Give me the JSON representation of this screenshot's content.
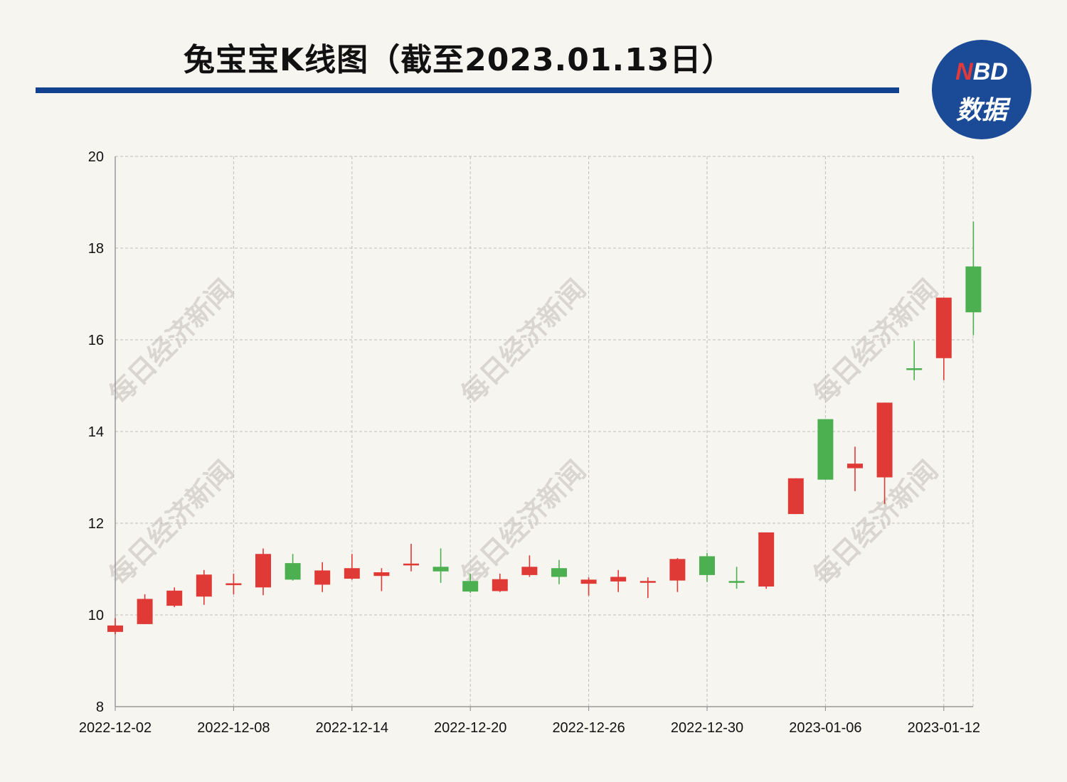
{
  "title": "兔宝宝K线图（截至2023.01.13日）",
  "logo": {
    "line1_n": "N",
    "line1_rest": "BD",
    "line2": "数据"
  },
  "watermark": "每日经济新闻",
  "colors": {
    "up": "#e03a36",
    "down": "#4caf50",
    "accent": "#12418f",
    "grid": "#bdbdbd"
  },
  "chart_data": {
    "type": "candlestick",
    "title": "兔宝宝K线图（截至2023.01.13日）",
    "ylim": [
      8,
      20
    ],
    "yticks": [
      8,
      10,
      12,
      14,
      16,
      18,
      20
    ],
    "xticks": [
      "2022-12-02",
      "2022-12-08",
      "2022-12-14",
      "2022-12-20",
      "2022-12-26",
      "2022-12-30",
      "2023-01-06",
      "2023-01-12"
    ],
    "grid": true,
    "dates": [
      "2022-12-02",
      "2022-12-05",
      "2022-12-06",
      "2022-12-07",
      "2022-12-08",
      "2022-12-09",
      "2022-12-12",
      "2022-12-13",
      "2022-12-14",
      "2022-12-15",
      "2022-12-16",
      "2022-12-19",
      "2022-12-20",
      "2022-12-21",
      "2022-12-22",
      "2022-12-23",
      "2022-12-26",
      "2022-12-27",
      "2022-12-28",
      "2022-12-29",
      "2022-12-30",
      "2023-01-03",
      "2023-01-04",
      "2023-01-05",
      "2023-01-06",
      "2023-01-09",
      "2023-01-10",
      "2023-01-11",
      "2023-01-12",
      "2023-01-13"
    ],
    "candles": [
      {
        "open": 9.63,
        "close": 9.77,
        "high": 9.93,
        "low": 9.58,
        "dir": "up"
      },
      {
        "open": 9.8,
        "close": 10.35,
        "high": 10.45,
        "low": 9.8,
        "dir": "up"
      },
      {
        "open": 10.2,
        "close": 10.53,
        "high": 10.6,
        "low": 10.17,
        "dir": "up"
      },
      {
        "open": 10.4,
        "close": 10.88,
        "high": 10.98,
        "low": 10.22,
        "dir": "up"
      },
      {
        "open": 10.65,
        "close": 10.69,
        "high": 10.9,
        "low": 10.45,
        "dir": "up"
      },
      {
        "open": 10.6,
        "close": 11.33,
        "high": 11.45,
        "low": 10.43,
        "dir": "up"
      },
      {
        "open": 11.13,
        "close": 10.77,
        "high": 11.33,
        "low": 10.75,
        "dir": "down"
      },
      {
        "open": 10.66,
        "close": 10.97,
        "high": 11.15,
        "low": 10.5,
        "dir": "up"
      },
      {
        "open": 10.79,
        "close": 11.02,
        "high": 11.33,
        "low": 10.77,
        "dir": "up"
      },
      {
        "open": 10.85,
        "close": 10.93,
        "high": 11.02,
        "low": 10.52,
        "dir": "up"
      },
      {
        "open": 11.08,
        "close": 11.12,
        "high": 11.55,
        "low": 10.95,
        "dir": "up"
      },
      {
        "open": 11.05,
        "close": 10.95,
        "high": 11.45,
        "low": 10.7,
        "dir": "down"
      },
      {
        "open": 10.74,
        "close": 10.51,
        "high": 10.9,
        "low": 10.48,
        "dir": "down"
      },
      {
        "open": 10.52,
        "close": 10.78,
        "high": 10.9,
        "low": 10.5,
        "dir": "up"
      },
      {
        "open": 10.87,
        "close": 11.05,
        "high": 11.3,
        "low": 10.83,
        "dir": "up"
      },
      {
        "open": 11.02,
        "close": 10.83,
        "high": 11.2,
        "low": 10.67,
        "dir": "down"
      },
      {
        "open": 10.68,
        "close": 10.77,
        "high": 10.82,
        "low": 10.42,
        "dir": "up"
      },
      {
        "open": 10.73,
        "close": 10.83,
        "high": 10.98,
        "low": 10.5,
        "dir": "up"
      },
      {
        "open": 10.71,
        "close": 10.74,
        "high": 10.82,
        "low": 10.37,
        "dir": "up"
      },
      {
        "open": 10.75,
        "close": 11.22,
        "high": 11.24,
        "low": 10.5,
        "dir": "up"
      },
      {
        "open": 11.28,
        "close": 10.87,
        "high": 11.35,
        "low": 10.72,
        "dir": "down"
      },
      {
        "open": 10.74,
        "close": 10.7,
        "high": 11.05,
        "low": 10.57,
        "dir": "down"
      },
      {
        "open": 10.62,
        "close": 11.8,
        "high": 11.8,
        "low": 10.57,
        "dir": "up"
      },
      {
        "open": 12.2,
        "close": 12.98,
        "high": 12.98,
        "low": 12.2,
        "dir": "up"
      },
      {
        "open": 14.27,
        "close": 12.95,
        "high": 14.27,
        "low": 12.95,
        "dir": "down"
      },
      {
        "open": 13.2,
        "close": 13.3,
        "high": 13.67,
        "low": 12.7,
        "dir": "up"
      },
      {
        "open": 13.0,
        "close": 14.63,
        "high": 14.63,
        "low": 12.42,
        "dir": "up"
      },
      {
        "open": 15.38,
        "close": 15.36,
        "high": 15.98,
        "low": 15.12,
        "dir": "down"
      },
      {
        "open": 15.6,
        "close": 16.92,
        "high": 16.92,
        "low": 15.12,
        "dir": "up"
      },
      {
        "open": 17.6,
        "close": 16.6,
        "high": 18.58,
        "low": 16.1,
        "dir": "down"
      }
    ]
  }
}
